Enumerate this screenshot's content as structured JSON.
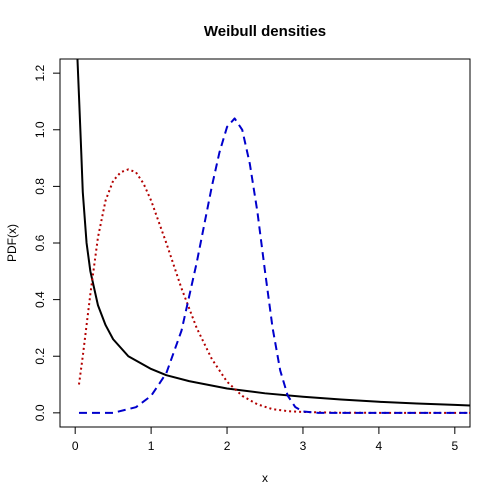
{
  "chart_data": {
    "type": "line",
    "title": "Weibull densities",
    "xlabel": "x",
    "ylabel": "PDF(x)",
    "xlim": [
      -0.2,
      5.2
    ],
    "ylim": [
      -0.05,
      1.25
    ],
    "x_ticks": [
      0,
      1,
      2,
      3,
      4,
      5
    ],
    "y_ticks": [
      0.0,
      0.2,
      0.4,
      0.6,
      0.8,
      1.0,
      1.2
    ],
    "grid": false,
    "legend": "none",
    "series": [
      {
        "style": "solid",
        "color": "#000000",
        "x": [
          0.03,
          0.05,
          0.08,
          0.1,
          0.15,
          0.2,
          0.3,
          0.4,
          0.5,
          0.7,
          1.0,
          1.2,
          1.5,
          2.0,
          2.5,
          3.0,
          3.5,
          4.0,
          4.5,
          5.0,
          5.2
        ],
        "y": [
          1.25,
          1.12,
          0.92,
          0.78,
          0.6,
          0.5,
          0.38,
          0.31,
          0.26,
          0.2,
          0.155,
          0.133,
          0.112,
          0.086,
          0.069,
          0.057,
          0.047,
          0.039,
          0.033,
          0.028,
          0.026
        ]
      },
      {
        "style": "dotted",
        "color": "#b30000",
        "x": [
          0.05,
          0.1,
          0.2,
          0.3,
          0.4,
          0.5,
          0.6,
          0.7,
          0.8,
          0.9,
          1.0,
          1.2,
          1.4,
          1.6,
          1.8,
          2.0,
          2.2,
          2.4,
          2.6,
          2.8,
          3.0,
          3.5,
          4.0,
          5.2
        ],
        "y": [
          0.1,
          0.2,
          0.42,
          0.62,
          0.75,
          0.82,
          0.85,
          0.86,
          0.85,
          0.81,
          0.75,
          0.6,
          0.44,
          0.3,
          0.19,
          0.11,
          0.06,
          0.03,
          0.013,
          0.006,
          0.003,
          0.0004,
          0.0,
          0.0
        ]
      },
      {
        "style": "dashed",
        "color": "#0000cc",
        "x": [
          0.05,
          0.5,
          0.8,
          1.0,
          1.2,
          1.4,
          1.6,
          1.8,
          1.9,
          2.0,
          2.1,
          2.2,
          2.3,
          2.4,
          2.5,
          2.6,
          2.7,
          2.8,
          2.9,
          3.0,
          3.2,
          3.5,
          4.0,
          5.2
        ],
        "y": [
          0.0,
          0.0,
          0.02,
          0.06,
          0.14,
          0.29,
          0.53,
          0.8,
          0.92,
          1.01,
          1.04,
          1.0,
          0.88,
          0.71,
          0.5,
          0.3,
          0.15,
          0.06,
          0.02,
          0.005,
          0.0,
          0.0,
          0.0,
          0.0
        ]
      }
    ]
  }
}
